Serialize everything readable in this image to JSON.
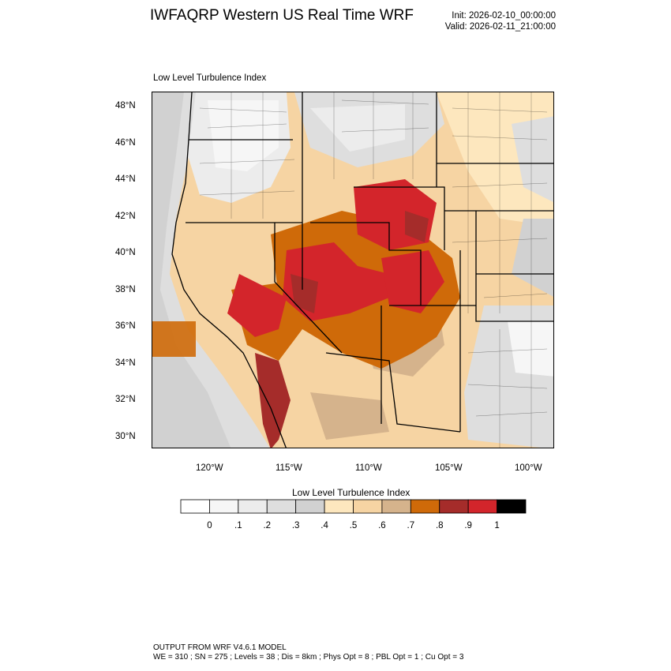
{
  "header": {
    "title": "IWFAQRP Western US Real Time WRF",
    "init": "Init: 2026-02-10_00:00:00",
    "valid": "Valid: 2026-02-11_21:00:00"
  },
  "map": {
    "field_label": "Low Level Turbulence Index",
    "lat_ticks": [
      "48°N",
      "46°N",
      "44°N",
      "42°N",
      "40°N",
      "38°N",
      "36°N",
      "34°N",
      "32°N",
      "30°N"
    ],
    "lon_ticks": [
      "120°W",
      "115°W",
      "110°W",
      "105°W",
      "100°W"
    ]
  },
  "colorbar": {
    "title": "Low Level Turbulence Index",
    "labels": [
      "0",
      ".1",
      ".2",
      ".3",
      ".4",
      ".5",
      ".6",
      ".7",
      ".8",
      ".9",
      "1"
    ],
    "colors": [
      "#ffffff",
      "#f6f6f6",
      "#ececec",
      "#dedede",
      "#d1d1d1",
      "#fde7be",
      "#f6d4a3",
      "#d5b38c",
      "#cf6a09",
      "#a52c2a",
      "#d3252b",
      "#000000"
    ]
  },
  "footer": {
    "line1": "OUTPUT FROM WRF V4.6.1 MODEL",
    "line2": "WE = 310 ; SN = 275 ; Levels = 38 ; Dis = 8km ; Phys Opt = 8 ; PBL Opt = 1 ; Cu Opt = 3"
  }
}
